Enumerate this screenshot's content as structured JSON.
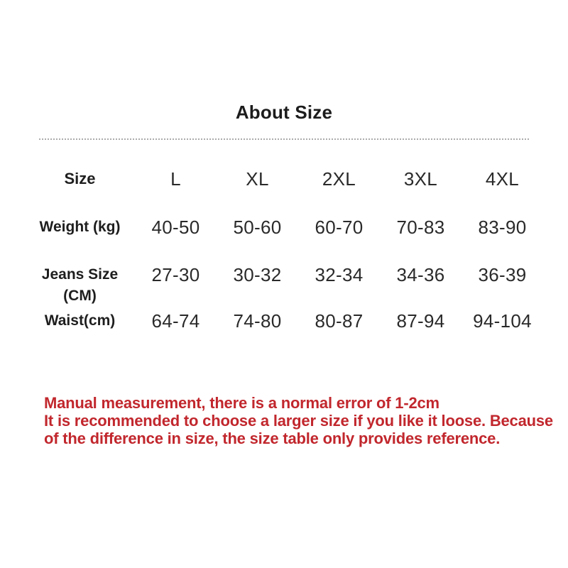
{
  "title": "About Size",
  "table": {
    "header": {
      "label": "Size",
      "columns": [
        "L",
        "XL",
        "2XL",
        "3XL",
        "4XL"
      ]
    },
    "rows": [
      {
        "label": "Weight (kg)",
        "label2": "",
        "values": [
          "40-50",
          "50-60",
          "60-70",
          "70-83",
          "83-90"
        ]
      },
      {
        "label": "Jeans Size",
        "label2": "(CM)",
        "values": [
          "27-30",
          "30-32",
          "32-34",
          "34-36",
          "36-39"
        ]
      },
      {
        "label": "Waist(cm)",
        "label2": "",
        "values": [
          "64-74",
          "74-80",
          "80-87",
          "87-94",
          "94-104"
        ]
      }
    ]
  },
  "disclaimer": {
    "color": "#c1272d",
    "lines": [
      "Manual measurement, there is a normal error of 1-2cm",
      "It is recommended to choose a larger size if you like it loose. Because",
      "of the difference in size, the size table only provides reference."
    ]
  },
  "colors": {
    "text": "#222222",
    "divider": "#ababab",
    "background": "#ffffff"
  }
}
